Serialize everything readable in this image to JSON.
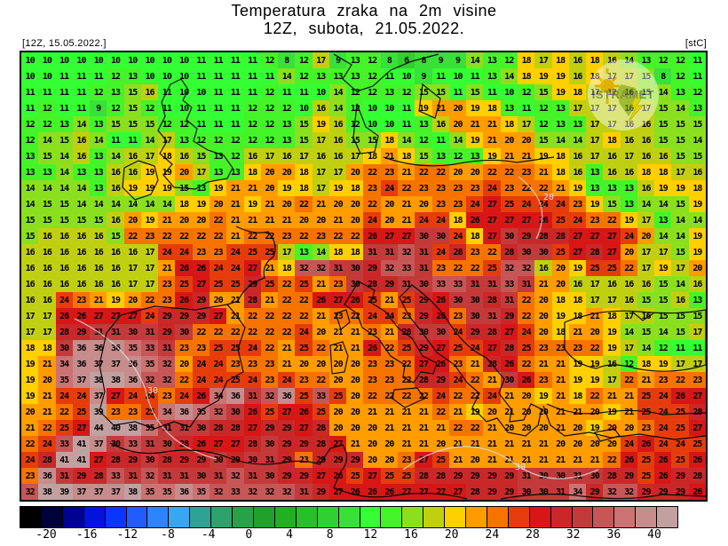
{
  "header": {
    "title_line1": "Temperatura zraka na 2m visine",
    "title_line2": "12Z, subota, 21.05.2022.",
    "run_label": "[12Z, 15.05.2022.]",
    "unit_label": "[stC]"
  },
  "logo": {
    "text": "ISTRAMET"
  },
  "chart_data": {
    "type": "heatmap",
    "title": "Temperatura zraka na 2m visine",
    "subtitle": "12Z, subota, 21.05.2022.",
    "unit": "stC",
    "grid_rows": 28,
    "grid_cols": 40,
    "values": [
      [
        10,
        10,
        10,
        10,
        10,
        10,
        10,
        10,
        10,
        10,
        11,
        11,
        11,
        11,
        12,
        8,
        12,
        17,
        9,
        13,
        12,
        8,
        6,
        8,
        9,
        9,
        14,
        13,
        12,
        18,
        17,
        18,
        16,
        18,
        16,
        14,
        13,
        12,
        12,
        11
      ],
      [
        10,
        10,
        11,
        11,
        11,
        12,
        13,
        10,
        10,
        10,
        11,
        11,
        11,
        11,
        11,
        14,
        12,
        13,
        13,
        13,
        12,
        11,
        10,
        9,
        11,
        10,
        11,
        13,
        14,
        18,
        19,
        19,
        16,
        18,
        17,
        17,
        15,
        8,
        12,
        11
      ],
      [
        11,
        11,
        11,
        11,
        12,
        13,
        15,
        16,
        11,
        10,
        10,
        11,
        11,
        11,
        12,
        11,
        11,
        10,
        14,
        12,
        12,
        13,
        12,
        15,
        15,
        11,
        15,
        11,
        10,
        12,
        15,
        19,
        18,
        17,
        17,
        16,
        15,
        14,
        13,
        12
      ],
      [
        11,
        12,
        11,
        11,
        9,
        12,
        15,
        12,
        11,
        10,
        11,
        11,
        11,
        12,
        12,
        12,
        10,
        16,
        14,
        12,
        10,
        10,
        11,
        19,
        21,
        20,
        19,
        18,
        13,
        11,
        12,
        13,
        17,
        17,
        17,
        16,
        17,
        15,
        14,
        13
      ],
      [
        12,
        12,
        13,
        14,
        13,
        15,
        15,
        15,
        12,
        12,
        11,
        11,
        11,
        12,
        12,
        13,
        15,
        19,
        16,
        12,
        10,
        10,
        11,
        13,
        16,
        20,
        21,
        21,
        18,
        17,
        12,
        13,
        13,
        17,
        17,
        16,
        16,
        15,
        15,
        15
      ],
      [
        12,
        14,
        15,
        16,
        14,
        11,
        11,
        14,
        17,
        13,
        12,
        12,
        12,
        12,
        12,
        13,
        15,
        17,
        16,
        15,
        15,
        18,
        14,
        12,
        11,
        14,
        19,
        21,
        20,
        20,
        15,
        14,
        14,
        17,
        18,
        16,
        16,
        15,
        15,
        14
      ],
      [
        13,
        15,
        14,
        16,
        13,
        14,
        16,
        17,
        18,
        16,
        15,
        13,
        12,
        16,
        17,
        16,
        17,
        16,
        16,
        17,
        18,
        21,
        18,
        15,
        13,
        12,
        13,
        19,
        21,
        21,
        19,
        18,
        16,
        17,
        16,
        17,
        16,
        16,
        15,
        15
      ],
      [
        13,
        13,
        14,
        13,
        13,
        16,
        16,
        19,
        19,
        20,
        17,
        13,
        13,
        18,
        20,
        20,
        18,
        17,
        17,
        20,
        22,
        23,
        21,
        22,
        22,
        20,
        20,
        22,
        22,
        23,
        21,
        18,
        16,
        13,
        16,
        16,
        18,
        18,
        17,
        16
      ],
      [
        14,
        14,
        14,
        14,
        13,
        16,
        19,
        19,
        19,
        15,
        13,
        19,
        21,
        21,
        20,
        19,
        18,
        17,
        19,
        18,
        23,
        24,
        22,
        23,
        23,
        23,
        23,
        24,
        23,
        22,
        22,
        21,
        19,
        13,
        13,
        13,
        16,
        19,
        19,
        18
      ],
      [
        14,
        15,
        15,
        14,
        14,
        14,
        14,
        14,
        14,
        18,
        19,
        20,
        21,
        19,
        21,
        20,
        22,
        21,
        20,
        20,
        22,
        20,
        21,
        20,
        23,
        23,
        24,
        27,
        25,
        24,
        24,
        24,
        23,
        19,
        15,
        13,
        14,
        14,
        15,
        19
      ],
      [
        15,
        15,
        15,
        15,
        15,
        16,
        20,
        19,
        21,
        20,
        20,
        22,
        21,
        21,
        21,
        21,
        20,
        20,
        21,
        20,
        24,
        20,
        21,
        24,
        24,
        18,
        26,
        27,
        27,
        27,
        26,
        25,
        24,
        23,
        22,
        19,
        17,
        13,
        14,
        14
      ],
      [
        15,
        16,
        16,
        16,
        16,
        15,
        22,
        23,
        22,
        22,
        22,
        22,
        21,
        22,
        22,
        23,
        22,
        23,
        22,
        22,
        26,
        27,
        27,
        30,
        30,
        24,
        18,
        27,
        30,
        29,
        28,
        28,
        27,
        27,
        27,
        24,
        20,
        14,
        14,
        19
      ],
      [
        16,
        16,
        16,
        16,
        16,
        16,
        16,
        17,
        24,
        24,
        23,
        23,
        24,
        25,
        25,
        17,
        13,
        14,
        18,
        18,
        31,
        31,
        32,
        31,
        24,
        28,
        23,
        22,
        28,
        30,
        30,
        25,
        27,
        28,
        27,
        20,
        17,
        17,
        15,
        19
      ],
      [
        16,
        16,
        16,
        16,
        16,
        16,
        17,
        17,
        21,
        26,
        26,
        24,
        24,
        27,
        21,
        18,
        32,
        32,
        31,
        30,
        29,
        32,
        33,
        31,
        23,
        22,
        22,
        25,
        32,
        32,
        16,
        20,
        19,
        25,
        25,
        22,
        17,
        19,
        17,
        20
      ],
      [
        16,
        16,
        16,
        16,
        16,
        16,
        17,
        17,
        23,
        25,
        27,
        25,
        25,
        29,
        25,
        22,
        25,
        21,
        23,
        30,
        28,
        29,
        31,
        30,
        33,
        33,
        31,
        31,
        33,
        31,
        21,
        20,
        16,
        17,
        16,
        16,
        16,
        15,
        14,
        16
      ],
      [
        16,
        16,
        24,
        23,
        21,
        19,
        20,
        22,
        23,
        26,
        29,
        20,
        21,
        28,
        21,
        22,
        22,
        26,
        27,
        26,
        25,
        21,
        25,
        29,
        26,
        30,
        30,
        28,
        31,
        22,
        20,
        18,
        18,
        17,
        17,
        16,
        15,
        15,
        16,
        13
      ],
      [
        17,
        17,
        26,
        26,
        27,
        27,
        27,
        24,
        29,
        29,
        29,
        27,
        21,
        22,
        22,
        22,
        22,
        21,
        23,
        22,
        24,
        24,
        23,
        29,
        26,
        23,
        30,
        31,
        29,
        22,
        20,
        19,
        18,
        21,
        18,
        17,
        16,
        15,
        15,
        15
      ],
      [
        17,
        17,
        28,
        29,
        31,
        31,
        30,
        31,
        29,
        30,
        22,
        22,
        22,
        22,
        22,
        22,
        24,
        20,
        21,
        21,
        23,
        21,
        28,
        30,
        30,
        24,
        29,
        28,
        27,
        24,
        20,
        18,
        21,
        20,
        19,
        14,
        15,
        14,
        15,
        17
      ],
      [
        18,
        18,
        30,
        36,
        36,
        36,
        35,
        33,
        31,
        23,
        23,
        25,
        25,
        24,
        22,
        21,
        25,
        22,
        21,
        21,
        26,
        22,
        25,
        29,
        27,
        25,
        24,
        27,
        28,
        25,
        23,
        23,
        23,
        22,
        19,
        17,
        14,
        12,
        11,
        11
      ],
      [
        19,
        21,
        34,
        36,
        37,
        37,
        36,
        35,
        32,
        20,
        24,
        24,
        23,
        23,
        23,
        21,
        20,
        20,
        20,
        20,
        23,
        23,
        22,
        27,
        26,
        23,
        21,
        28,
        26,
        22,
        21,
        21,
        19,
        19,
        16,
        12,
        18,
        19,
        17,
        17
      ],
      [
        19,
        20,
        35,
        37,
        38,
        38,
        36,
        32,
        32,
        22,
        24,
        24,
        25,
        24,
        23,
        24,
        23,
        22,
        20,
        20,
        23,
        23,
        22,
        28,
        29,
        24,
        22,
        21,
        30,
        26,
        23,
        21,
        19,
        19,
        17,
        22,
        21,
        23,
        22,
        23
      ],
      [
        19,
        21,
        24,
        24,
        37,
        27,
        24,
        24,
        23,
        24,
        26,
        34,
        36,
        31,
        32,
        36,
        25,
        33,
        25,
        20,
        22,
        22,
        22,
        22,
        24,
        22,
        22,
        24,
        21,
        20,
        19,
        21,
        18,
        22,
        21,
        21,
        25,
        24,
        26,
        27
      ],
      [
        20,
        21,
        22,
        25,
        39,
        23,
        23,
        25,
        34,
        36,
        35,
        32,
        30,
        26,
        25,
        27,
        26,
        25,
        20,
        20,
        21,
        21,
        21,
        21,
        22,
        21,
        19,
        20,
        21,
        20,
        20,
        21,
        21,
        20,
        19,
        21,
        25,
        24,
        25,
        28
      ],
      [
        21,
        22,
        25,
        27,
        44,
        40,
        38,
        35,
        31,
        31,
        30,
        28,
        28,
        27,
        29,
        29,
        27,
        28,
        20,
        20,
        20,
        21,
        21,
        21,
        21,
        22,
        22,
        21,
        20,
        20,
        20,
        21,
        20,
        19,
        20,
        20,
        23,
        24,
        25,
        27
      ],
      [
        22,
        24,
        33,
        41,
        37,
        30,
        33,
        31,
        30,
        28,
        26,
        27,
        27,
        28,
        30,
        29,
        29,
        28,
        27,
        21,
        20,
        20,
        21,
        21,
        20,
        21,
        21,
        21,
        21,
        21,
        21,
        20,
        20,
        20,
        20,
        24,
        26,
        24,
        24,
        25
      ],
      [
        24,
        28,
        41,
        41,
        27,
        28,
        29,
        30,
        28,
        29,
        29,
        30,
        29,
        30,
        31,
        29,
        23,
        29,
        29,
        29,
        20,
        20,
        23,
        27,
        25,
        21,
        20,
        21,
        21,
        21,
        21,
        21,
        21,
        21,
        22,
        26,
        25,
        26,
        25,
        26
      ],
      [
        23,
        36,
        31,
        29,
        28,
        33,
        31,
        32,
        31,
        31,
        30,
        31,
        32,
        31,
        30,
        29,
        29,
        27,
        26,
        25,
        27,
        25,
        25,
        28,
        28,
        29,
        29,
        29,
        29,
        31,
        30,
        30,
        31,
        30,
        28,
        29,
        25,
        26,
        29,
        28
      ],
      [
        32,
        38,
        39,
        37,
        37,
        37,
        38,
        35,
        35,
        36,
        35,
        32,
        33,
        32,
        32,
        32,
        31,
        29,
        27,
        26,
        26,
        26,
        27,
        27,
        27,
        27,
        28,
        29,
        29,
        30,
        30,
        31,
        34,
        29,
        32,
        32,
        29,
        29,
        29,
        26
      ]
    ],
    "colorbar": {
      "min": -22,
      "max": 40,
      "step": 2,
      "tick_labels": [
        "-20",
        "-16",
        "-12",
        "-8",
        "-4",
        "0",
        "4",
        "8",
        "12",
        "16",
        "20",
        "24",
        "28",
        "32",
        "36",
        "40"
      ],
      "colors": [
        "#000000",
        "#00013a",
        "#000290",
        "#0113dd",
        "#0b35ff",
        "#205cff",
        "#2e84ff",
        "#38a6f2",
        "#2ea295",
        "#2ea26d",
        "#27a247",
        "#1fa12b",
        "#20b020",
        "#28c028",
        "#30d030",
        "#38e038",
        "#33ff33",
        "#44f428",
        "#8ae01e",
        "#c0d010",
        "#ffd000",
        "#ff9c00",
        "#f67300",
        "#e63c0c",
        "#d81616",
        "#ca2828",
        "#c43a3a",
        "#c75656",
        "#cc7272",
        "#c78c8c",
        "#c2a0a0"
      ]
    },
    "contour_labels": [
      "20",
      "30"
    ],
    "legend_position": "bottom",
    "grid": false
  }
}
